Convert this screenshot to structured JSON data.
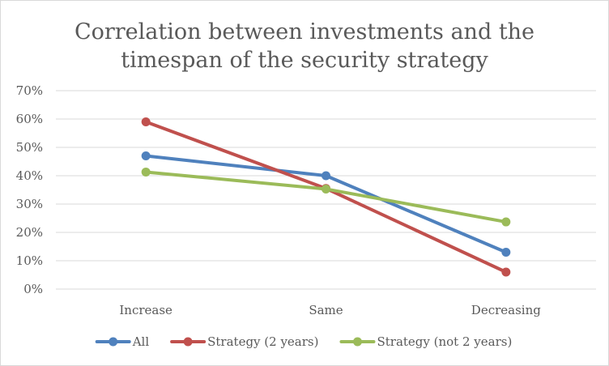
{
  "chart_data": {
    "type": "line",
    "title_lines": [
      "Correlation between investments and the",
      "timespan of the security strategy"
    ],
    "categories": [
      "Increase",
      "Same",
      "Decreasing"
    ],
    "y_ticks": [
      "0%",
      "10%",
      "20%",
      "30%",
      "40%",
      "50%",
      "60%",
      "70%"
    ],
    "ylim": [
      0,
      0.7
    ],
    "grid": true,
    "legend_position": "bottom",
    "series": [
      {
        "name": "All",
        "values": [
          0.47,
          0.4,
          0.13
        ],
        "color": "#4f81bd"
      },
      {
        "name": "Strategy (2 years)",
        "values": [
          0.59,
          0.355,
          0.06
        ],
        "color": "#c0504d"
      },
      {
        "name": "Strategy (not  2 years)",
        "values": [
          0.413,
          0.353,
          0.237
        ],
        "color": "#9bbb59"
      }
    ]
  }
}
